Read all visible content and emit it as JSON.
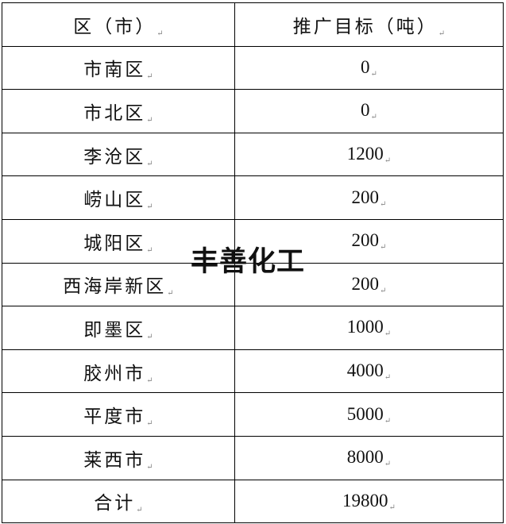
{
  "table": {
    "headers": [
      "区（市）",
      "推广目标（吨）"
    ],
    "rows": [
      {
        "region": "市南区",
        "target": "0"
      },
      {
        "region": "市北区",
        "target": "0"
      },
      {
        "region": "李沧区",
        "target": "1200"
      },
      {
        "region": "崂山区",
        "target": "200"
      },
      {
        "region": "城阳区",
        "target": "200"
      },
      {
        "region": "西海岸新区",
        "target": "200"
      },
      {
        "region": "即墨区",
        "target": "1000"
      },
      {
        "region": "胶州市",
        "target": "4000"
      },
      {
        "region": "平度市",
        "target": "5000"
      },
      {
        "region": "莱西市",
        "target": "8000"
      },
      {
        "region": "合计",
        "target": "19800"
      }
    ]
  },
  "paragraph_mark": "↵",
  "watermark": "丰善化工"
}
